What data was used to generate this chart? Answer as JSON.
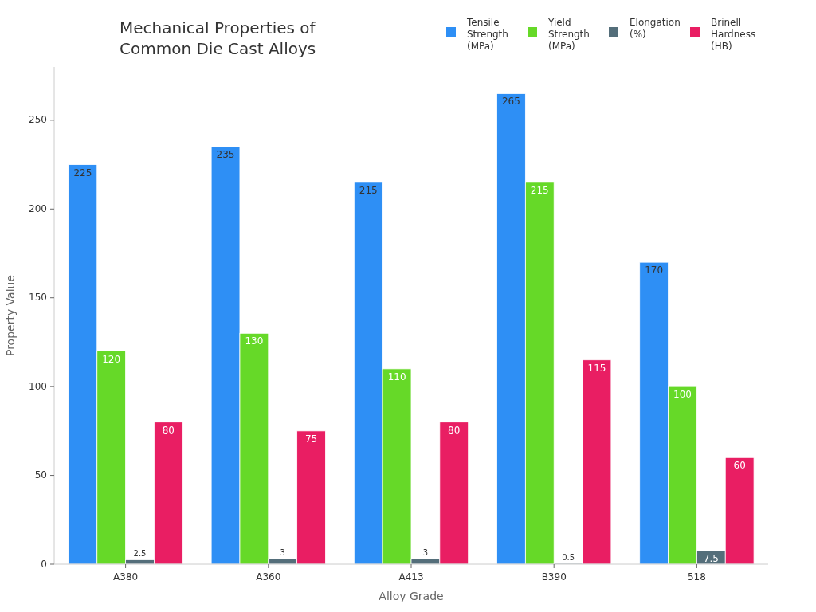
{
  "chart_data": {
    "type": "bar",
    "title": "Mechanical Properties of Common Die Cast Alloys",
    "xlabel": "Alloy Grade",
    "ylabel": "Property Value",
    "categories": [
      "A380",
      "A360",
      "A413",
      "B390",
      "518"
    ],
    "series": [
      {
        "name": "Tensile Strength (MPa)",
        "color": "#2e8ff5",
        "values": [
          225,
          235,
          215,
          265,
          170
        ]
      },
      {
        "name": "Yield Strength (MPa)",
        "color": "#66d928",
        "values": [
          120,
          130,
          110,
          215,
          100
        ]
      },
      {
        "name": "Elongation (%)",
        "color": "#546e7a",
        "values": [
          2.5,
          3,
          3,
          0.5,
          7.5
        ]
      },
      {
        "name": "Brinell Hardness (HB)",
        "color": "#e91e63",
        "values": [
          80,
          75,
          80,
          115,
          60
        ]
      }
    ],
    "ylim": [
      0,
      280
    ],
    "yticks": [
      0,
      50,
      100,
      150,
      200,
      250
    ],
    "data_labels": true,
    "legend": "top right",
    "grid": false
  }
}
